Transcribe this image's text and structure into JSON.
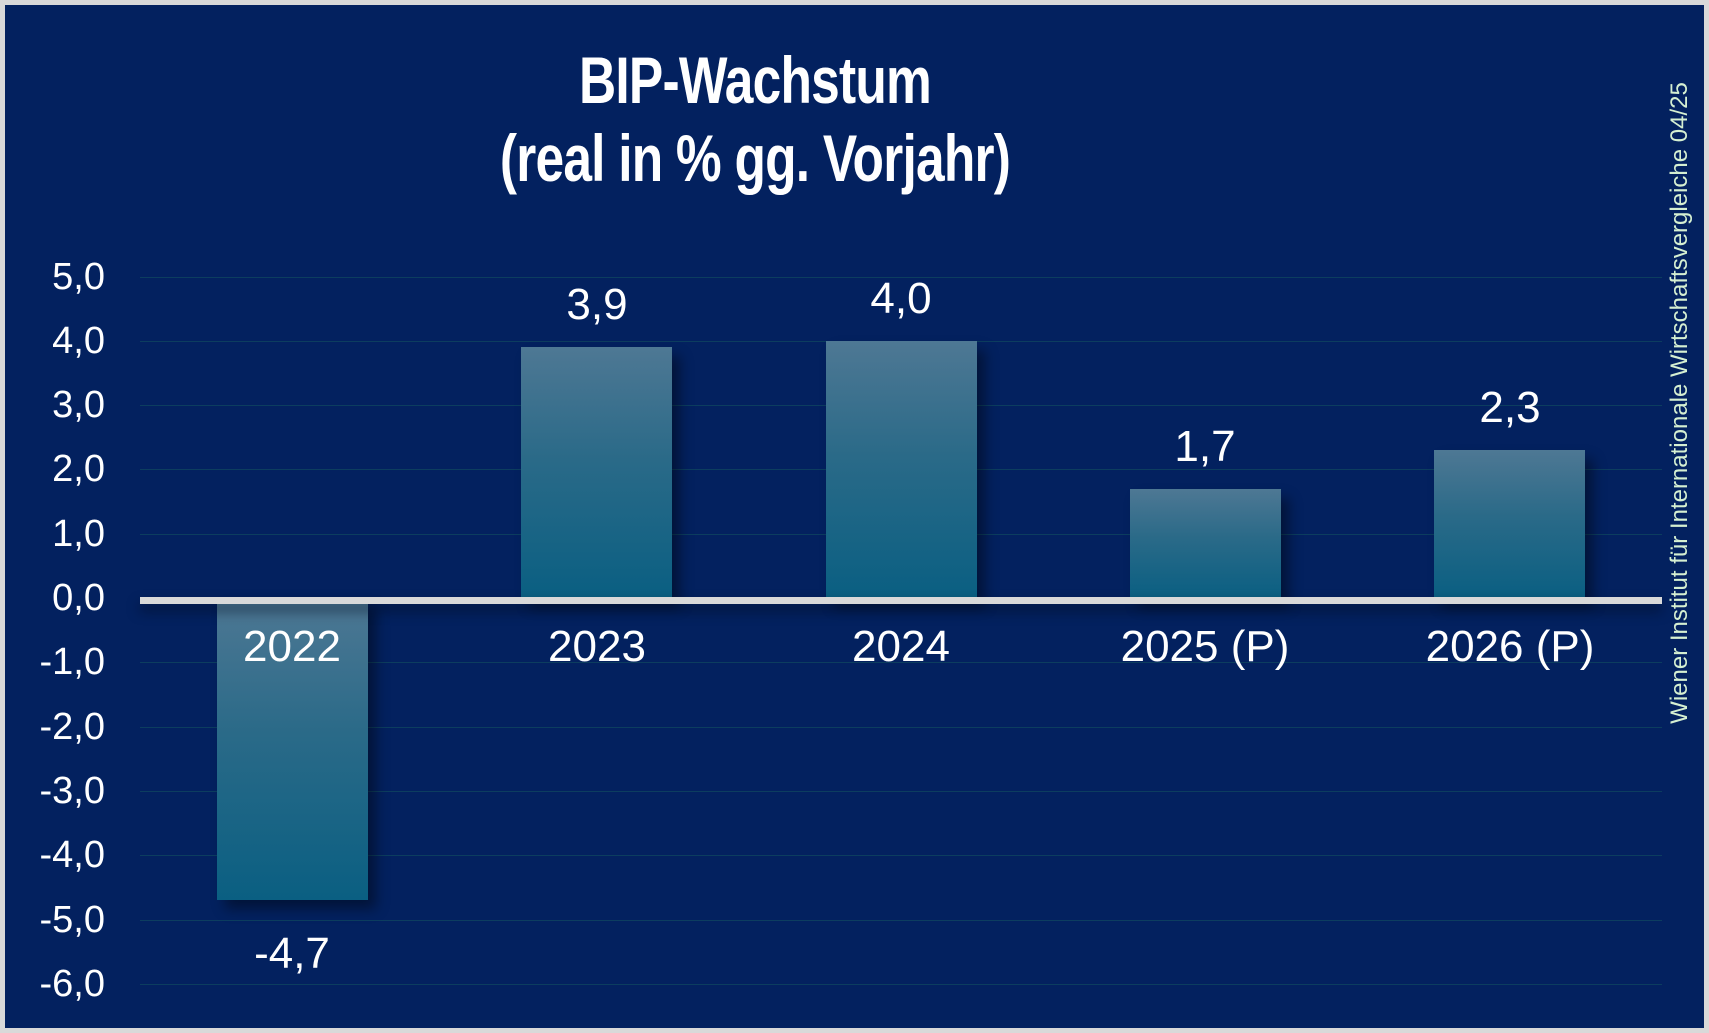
{
  "title": {
    "line1": "BIP-Wachstum",
    "line2": "(real in % gg. Vorjahr)"
  },
  "source_note": "Wiener Institut für Internationale Wirtschaftsvergleiche 04/25",
  "colors": {
    "background": "#03215f",
    "border": "#d9d9d9",
    "text": "#ffffff",
    "axis-line": "#d9d9d9",
    "bar-top": "#4e7894",
    "bar-mid": "#2a6a88",
    "bar-bottom": "#0a5f82",
    "gridline": "rgba(25, 95, 95, 0.45)",
    "source-text": "#d5efd1"
  },
  "chart_data": {
    "type": "bar",
    "title": "BIP-Wachstum (real in % gg. Vorjahr)",
    "categories": [
      "2022",
      "2023",
      "2024",
      "2025 (P)",
      "2026 (P)"
    ],
    "values": [
      -4.7,
      3.9,
      4.0,
      1.7,
      2.3
    ],
    "value_labels": [
      "-4,7",
      "3,9",
      "4,0",
      "1,7",
      "2,3"
    ],
    "xlabel": "",
    "ylabel": "",
    "ylim": [
      -6.5,
      5.5
    ],
    "grid": true,
    "legend_position": "none",
    "yticks": [
      {
        "label": "5,0",
        "value": 5
      },
      {
        "label": "4,0",
        "value": 4
      },
      {
        "label": "3,0",
        "value": 3
      },
      {
        "label": "2,0",
        "value": 2
      },
      {
        "label": "1,0",
        "value": 1
      },
      {
        "label": "0,0",
        "value": 0
      },
      {
        "label": "-1,0",
        "value": -1
      },
      {
        "label": "-2,0",
        "value": -2
      },
      {
        "label": "-3,0",
        "value": -3
      },
      {
        "label": "-4,0",
        "value": -4
      },
      {
        "label": "-5,0",
        "value": -5
      },
      {
        "label": "-6,0",
        "value": -6
      }
    ]
  }
}
